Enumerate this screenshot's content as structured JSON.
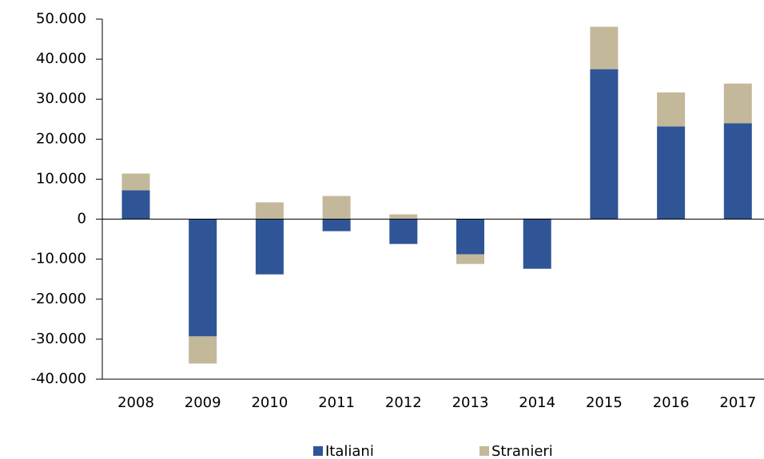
{
  "chart_data": {
    "type": "stacked-bar",
    "categories": [
      "2008",
      "2009",
      "2010",
      "2011",
      "2012",
      "2013",
      "2014",
      "2015",
      "2016",
      "2017"
    ],
    "series": [
      {
        "name": "Italiani",
        "color": "#2f5597",
        "values": [
          7200,
          -29300,
          -13800,
          -3000,
          -6200,
          -8800,
          -12400,
          37500,
          23200,
          24000
        ]
      },
      {
        "name": "Stranieri",
        "color": "#c4b89b",
        "values": [
          4200,
          -6800,
          4200,
          5800,
          1200,
          -2400,
          200,
          10600,
          8500,
          9900
        ]
      }
    ],
    "ylim": [
      -40000,
      50000
    ],
    "yticks": [
      {
        "value": -40000,
        "label": "-40.000"
      },
      {
        "value": -30000,
        "label": "-30.000"
      },
      {
        "value": -20000,
        "label": "-20.000"
      },
      {
        "value": -10000,
        "label": "-10.000"
      },
      0,
      {
        "value": 10000,
        "label": "10.000"
      },
      {
        "value": 20000,
        "label": "20.000"
      },
      {
        "value": 30000,
        "label": "30.000"
      },
      {
        "value": 40000,
        "label": "40.000"
      },
      {
        "value": 50000,
        "label": "50.000"
      }
    ],
    "legend": "bottom"
  }
}
